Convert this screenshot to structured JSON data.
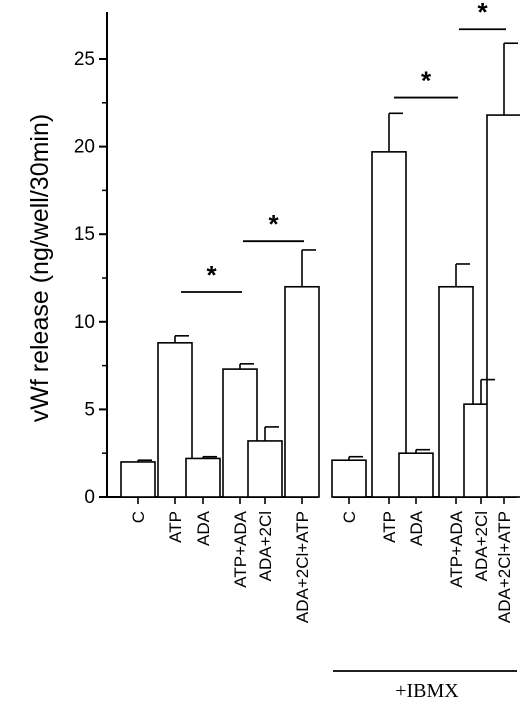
{
  "chart_data": {
    "type": "bar",
    "title": "",
    "ylabel": "vWf release (ng/well/30min)",
    "xlabel": "",
    "ylim": [
      0,
      27
    ],
    "yticks": [
      0,
      5,
      10,
      15,
      20,
      25
    ],
    "categories": [
      "C",
      "ATP",
      "ADA",
      "ATP+ADA",
      "ADA+2Cl",
      "ADA+2Cl+ATP",
      "C",
      "ATP",
      "ADA",
      "ATP+ADA",
      "ADA+2Cl",
      "ADA+2Cl+ATP"
    ],
    "values": [
      2.0,
      8.8,
      2.2,
      7.3,
      3.2,
      12.0,
      2.1,
      19.7,
      2.5,
      12.0,
      5.3,
      21.8
    ],
    "errors": [
      0.1,
      0.4,
      0.1,
      0.3,
      0.8,
      2.1,
      0.2,
      2.2,
      0.2,
      1.3,
      1.4,
      4.1
    ],
    "groups": [
      {
        "label": "",
        "start": 0,
        "end": 5
      },
      {
        "label": "+IBMX",
        "start": 6,
        "end": 11
      }
    ],
    "significance": [
      {
        "from": 2,
        "to": 3,
        "level": 11.7,
        "label": "*"
      },
      {
        "from": 4,
        "to": 5,
        "level": 14.6,
        "label": "*"
      },
      {
        "from": 8,
        "to": 9,
        "level": 22.8,
        "label": "*"
      },
      {
        "from": 10,
        "to": 11,
        "level": 26.7,
        "label": "*"
      }
    ],
    "grid": false,
    "legend": "none"
  }
}
